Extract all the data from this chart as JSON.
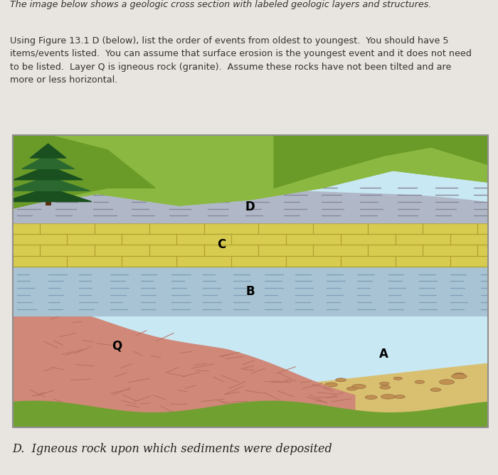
{
  "bg_color": "#e8e4df",
  "title_line1": "The image below shows a geologic cross section with labeled geologic layers and structures.",
  "body_text": "Using Figure 13.1 D (below), list the order of events from oldest to youngest.  You should have 5\nitems/events listed.  You can assume that surface erosion is the youngest event and it does not need\nto be listed.  Layer Q is igneous rock (granite).  Assume these rocks have not been tilted and are\nmore or less horizontal.",
  "caption": "D.  Igneous rock upon which sediments were deposited",
  "lc": {
    "sky": "#c8e8f4",
    "hill_green_light": "#8ab840",
    "hill_green_mid": "#7aaa30",
    "hill_green_dark": "#6a9a28",
    "tree_dark": "#1a5020",
    "tree_mid": "#2a6830",
    "trunk": "#5a3010",
    "layer_D_gray": "#b0b8c8",
    "layer_D_dash": "#888898",
    "layer_C_yellow": "#d8cc50",
    "layer_C_border": "#b0a030",
    "layer_B_blue": "#a8c4d4",
    "layer_B_dash": "#80a0b8",
    "layer_A_sand": "#d8c070",
    "layer_A_pebble": "#c09050",
    "layer_Q_red": "#d08878",
    "layer_Q_texture": "#b87060",
    "bottom_green": "#70a030",
    "border_color": "#909090"
  }
}
